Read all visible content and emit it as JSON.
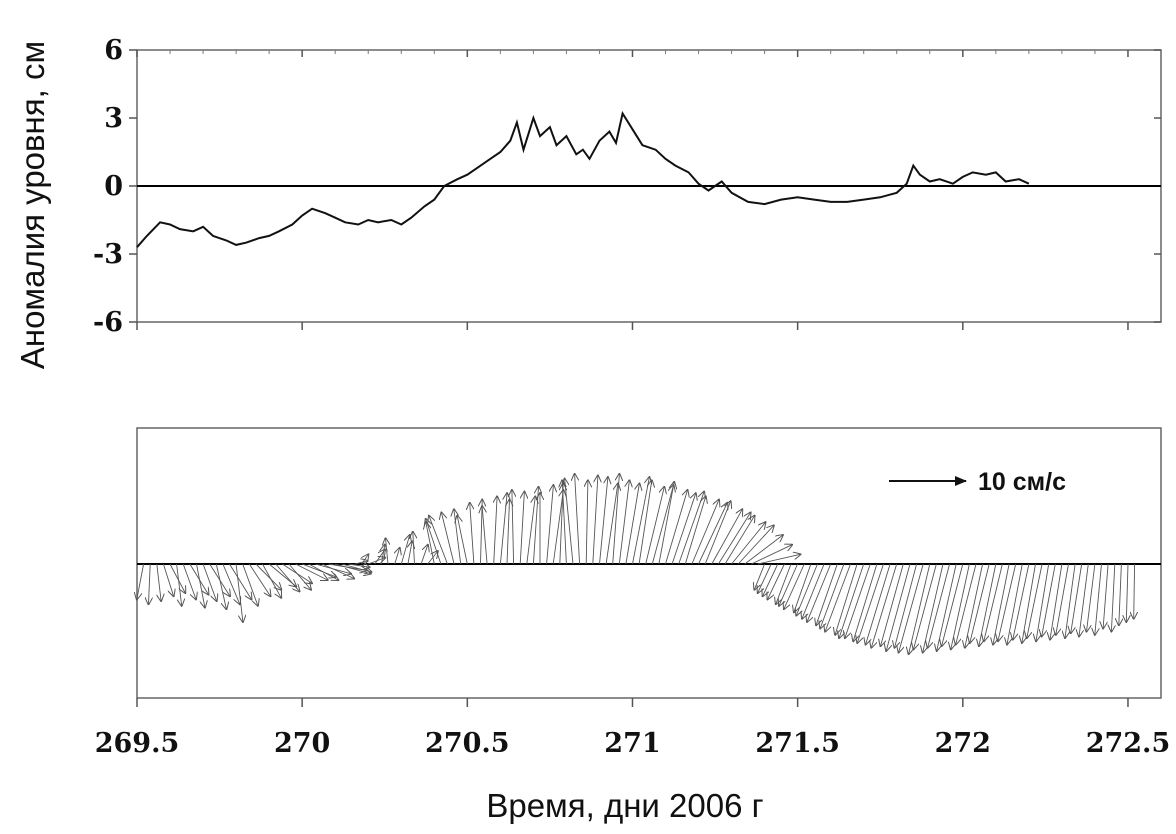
{
  "chart_data": [
    {
      "type": "line",
      "ylabel": "Аномалия уровня, см",
      "yticks": [
        6,
        3,
        0,
        -3,
        -6
      ],
      "ylim": [
        -6,
        6
      ],
      "xlim": [
        269.5,
        272.6
      ],
      "reference_line_y": 0,
      "series": [
        {
          "x": [
            269.5,
            269.53,
            269.57,
            269.6,
            269.63,
            269.67,
            269.7,
            269.73,
            269.77,
            269.8,
            269.83,
            269.87,
            269.9,
            269.93,
            269.97,
            270.0,
            270.03,
            270.07,
            270.1,
            270.13,
            270.17,
            270.2,
            270.23,
            270.27,
            270.3,
            270.33,
            270.37,
            270.4,
            270.43,
            270.47,
            270.5,
            270.53,
            270.57,
            270.6,
            270.63,
            270.65,
            270.67,
            270.7,
            270.72,
            270.75,
            270.77,
            270.8,
            270.83,
            270.85,
            270.87,
            270.9,
            270.93,
            270.95,
            270.97,
            271.0,
            271.03,
            271.07,
            271.1,
            271.13,
            271.17,
            271.2,
            271.23,
            271.25,
            271.27,
            271.3,
            271.35,
            271.4,
            271.45,
            271.5,
            271.55,
            271.6,
            271.65,
            271.7,
            271.75,
            271.8,
            271.83,
            271.85,
            271.87,
            271.9,
            271.93,
            271.97,
            272.0,
            272.03,
            272.07,
            272.1,
            272.13,
            272.17,
            272.2
          ],
          "y": [
            -2.7,
            -2.2,
            -1.6,
            -1.7,
            -1.9,
            -2.0,
            -1.8,
            -2.2,
            -2.4,
            -2.6,
            -2.5,
            -2.3,
            -2.2,
            -2.0,
            -1.7,
            -1.3,
            -1.0,
            -1.2,
            -1.4,
            -1.6,
            -1.7,
            -1.5,
            -1.6,
            -1.5,
            -1.7,
            -1.4,
            -0.9,
            -0.6,
            0.0,
            0.3,
            0.5,
            0.8,
            1.2,
            1.5,
            2.0,
            2.8,
            1.6,
            3.0,
            2.2,
            2.6,
            1.8,
            2.2,
            1.4,
            1.6,
            1.2,
            2.0,
            2.4,
            1.9,
            3.2,
            2.5,
            1.8,
            1.6,
            1.2,
            0.9,
            0.6,
            0.1,
            -0.2,
            0.0,
            0.2,
            -0.3,
            -0.7,
            -0.8,
            -0.6,
            -0.5,
            -0.6,
            -0.7,
            -0.7,
            -0.6,
            -0.5,
            -0.3,
            0.1,
            0.9,
            0.5,
            0.2,
            0.3,
            0.1,
            0.4,
            0.6,
            0.5,
            0.6,
            0.2,
            0.3,
            0.1
          ]
        }
      ]
    },
    {
      "type": "vector",
      "xlabel": "Время, дни 2006 г",
      "xticks": [
        269.5,
        270,
        270.5,
        271,
        271.5,
        272,
        272.5
      ],
      "xtick_labels": [
        "269.5",
        "270",
        "270.5",
        "271",
        "271.5",
        "272",
        "272.5"
      ],
      "xlim": [
        269.5,
        272.6
      ],
      "scale_vector": {
        "label": "10 см/с",
        "value_cm_s": 10
      },
      "reference_line_y": 0,
      "vectors": {
        "t": [
          269.52,
          269.54,
          269.56,
          269.58,
          269.6,
          269.62,
          269.64,
          269.66,
          269.68,
          269.7,
          269.72,
          269.74,
          269.76,
          269.78,
          269.8,
          269.82,
          269.84,
          269.86,
          269.88,
          269.9,
          269.92,
          269.94,
          269.96,
          269.98,
          270.0,
          270.02,
          270.04,
          270.06,
          270.08,
          270.1,
          270.12,
          270.14,
          270.16,
          270.18,
          270.2,
          270.22,
          270.24,
          270.26,
          270.28,
          270.3,
          270.32,
          270.34,
          270.36,
          270.38,
          270.4,
          270.42,
          270.44,
          270.46,
          270.48,
          270.5,
          270.52,
          270.54,
          270.56,
          270.58,
          270.6,
          270.62,
          270.64,
          270.66,
          270.68,
          270.7,
          270.72,
          270.74,
          270.76,
          270.78,
          270.8,
          270.82,
          270.84,
          270.86,
          270.88,
          270.9,
          270.92,
          270.94,
          270.96,
          270.98,
          271.0,
          271.02,
          271.04,
          271.06,
          271.08,
          271.1,
          271.12,
          271.14,
          271.16,
          271.18,
          271.2,
          271.22,
          271.24,
          271.26,
          271.28,
          271.3,
          271.32,
          271.34,
          271.36,
          271.38,
          271.4,
          271.42,
          271.44,
          271.46,
          271.48,
          271.5,
          271.52,
          271.54,
          271.56,
          271.58,
          271.6,
          271.62,
          271.64,
          271.66,
          271.68,
          271.7,
          271.72,
          271.74,
          271.76,
          271.78,
          271.8,
          271.82,
          271.84,
          271.86,
          271.88,
          271.9,
          271.92,
          271.94,
          271.96,
          271.98,
          272.0,
          272.02,
          272.04,
          272.06,
          272.08,
          272.1,
          272.12,
          272.14,
          272.16,
          272.18,
          272.2,
          272.22,
          272.24,
          272.26,
          272.28,
          272.3,
          272.32,
          272.34,
          272.36,
          272.38,
          272.4,
          272.42,
          272.44,
          272.46,
          272.48,
          272.5,
          272.52
        ],
        "u": [
          -0.8,
          -0.2,
          0.5,
          1.2,
          1.8,
          0.6,
          1.5,
          2.2,
          1.0,
          1.6,
          2.4,
          1.2,
          2.0,
          2.6,
          0.8,
          1.8,
          2.5,
          3.0,
          2.2,
          3.2,
          2.8,
          3.5,
          2.6,
          3.8,
          4.0,
          3.5,
          4.2,
          3.8,
          4.5,
          4.2,
          3.5,
          2.5,
          1.5,
          0.8,
          2.0,
          1.2,
          0.4,
          -0.3,
          0.6,
          1.0,
          0.5,
          -0.2,
          0.8,
          1.2,
          -1.0,
          -1.8,
          -2.2,
          -1.5,
          -0.8,
          -1.2,
          -0.5,
          0.2,
          -0.6,
          0.4,
          0.8,
          0.3,
          -0.2,
          0.5,
          1.0,
          0.6,
          0.0,
          0.8,
          1.2,
          0.4,
          -0.5,
          -1.0,
          -0.6,
          0.2,
          0.6,
          1.0,
          1.4,
          0.8,
          1.2,
          1.6,
          2.0,
          1.5,
          2.2,
          2.5,
          1.8,
          2.6,
          2.8,
          3.0,
          2.4,
          3.2,
          3.4,
          3.0,
          3.6,
          3.8,
          3.5,
          4.0,
          4.2,
          4.5,
          4.8,
          5.0,
          -1.2,
          -1.6,
          -1.8,
          -2.0,
          -1.8,
          -2.2,
          -2.4,
          -2.0,
          -2.5,
          -2.6,
          -2.8,
          -2.5,
          -2.8,
          -3.0,
          -2.6,
          -2.9,
          -3.0,
          -2.8,
          -3.1,
          -2.9,
          -3.0,
          -2.7,
          -2.8,
          -2.6,
          -2.9,
          -2.5,
          -2.7,
          -2.4,
          -2.6,
          -2.3,
          -2.5,
          -2.2,
          -2.4,
          -2.1,
          -2.3,
          -2.0,
          -2.2,
          -1.9,
          -2.1,
          -1.8,
          -1.9,
          -1.6,
          -1.8,
          -1.5,
          -1.6,
          -1.4,
          -1.5,
          -1.2,
          -1.3,
          -1.1,
          -1.0,
          -0.8,
          -0.6,
          -0.4,
          -0.3,
          -0.2,
          -0.1
        ],
        "v": [
          -2.2,
          -2.5,
          -2.3,
          -2.0,
          -1.8,
          -2.6,
          -2.2,
          -1.9,
          -2.7,
          -2.3,
          -2.0,
          -2.8,
          -2.5,
          -2.2,
          -3.6,
          -2.6,
          -2.0,
          -1.6,
          -2.1,
          -1.4,
          -1.7,
          -1.2,
          -1.6,
          -1.0,
          -0.8,
          -1.0,
          -0.6,
          -0.9,
          -0.4,
          -0.6,
          -0.5,
          -0.2,
          0.2,
          0.6,
          0.4,
          0.9,
          1.2,
          1.6,
          1.0,
          1.8,
          1.4,
          2.0,
          1.2,
          0.8,
          2.6,
          2.8,
          3.0,
          3.2,
          3.4,
          3.0,
          3.8,
          4.0,
          3.6,
          4.2,
          4.4,
          4.0,
          4.6,
          4.5,
          4.2,
          4.8,
          4.4,
          4.9,
          4.6,
          5.0,
          5.2,
          5.3,
          5.6,
          5.2,
          5.5,
          5.4,
          5.0,
          5.6,
          5.2,
          5.0,
          5.4,
          5.2,
          4.8,
          4.9,
          5.1,
          4.6,
          4.4,
          4.5,
          4.2,
          4.0,
          3.8,
          3.9,
          3.4,
          3.2,
          3.0,
          2.6,
          2.4,
          1.8,
          1.2,
          0.6,
          -1.6,
          -1.8,
          -2.0,
          -2.2,
          -2.5,
          -2.6,
          -2.8,
          -3.0,
          -3.2,
          -3.4,
          -3.6,
          -3.8,
          -4.0,
          -4.2,
          -4.4,
          -4.6,
          -4.6,
          -4.8,
          -4.9,
          -5.0,
          -5.2,
          -5.1,
          -5.4,
          -5.2,
          -5.5,
          -5.6,
          -5.3,
          -5.5,
          -5.2,
          -5.4,
          -5.1,
          -5.3,
          -5.0,
          -5.2,
          -4.9,
          -5.1,
          -4.8,
          -5.0,
          -4.8,
          -5.0,
          -4.7,
          -4.9,
          -4.6,
          -4.8,
          -4.5,
          -4.7,
          -4.4,
          -4.6,
          -4.3,
          -4.5,
          -4.2,
          -4.4,
          -4.0,
          -4.2,
          -3.8,
          -3.6,
          -3.4
        ]
      }
    }
  ]
}
